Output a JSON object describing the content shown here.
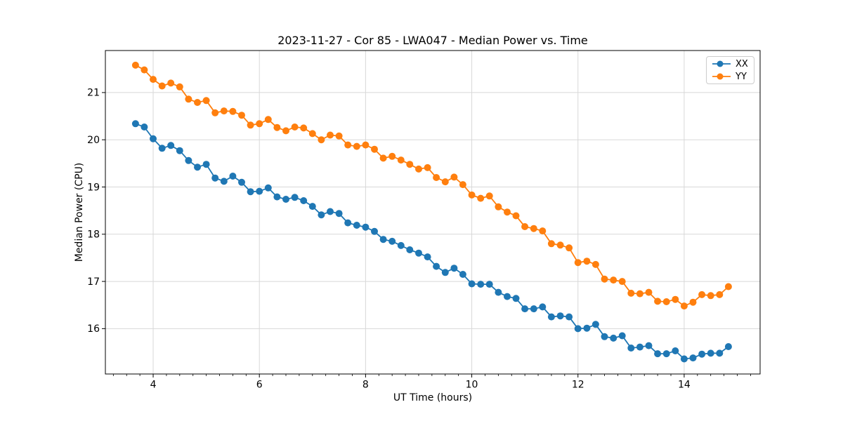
{
  "chart_data": {
    "type": "line",
    "title": "2023-11-27 - Cor 85 - LWA047 - Median Power vs. Time",
    "xlabel": "UT Time (hours)",
    "ylabel": "Median Power (CPU)",
    "xlim": [
      3.1,
      15.43
    ],
    "ylim": [
      15.04,
      21.89
    ],
    "xticks": [
      4,
      6,
      8,
      10,
      12,
      14
    ],
    "yticks": [
      16,
      17,
      18,
      19,
      20,
      21
    ],
    "x_minor_tick_step": 0.25,
    "grid": true,
    "legend_position": "upper right",
    "marker": "circle",
    "x": [
      3.667,
      3.833,
      4.0,
      4.167,
      4.333,
      4.5,
      4.667,
      4.833,
      5.0,
      5.167,
      5.333,
      5.5,
      5.667,
      5.833,
      6.0,
      6.167,
      6.333,
      6.5,
      6.667,
      6.833,
      7.0,
      7.167,
      7.333,
      7.5,
      7.667,
      7.833,
      8.0,
      8.167,
      8.333,
      8.5,
      8.667,
      8.833,
      9.0,
      9.167,
      9.333,
      9.5,
      9.667,
      9.833,
      10.0,
      10.167,
      10.333,
      10.5,
      10.667,
      10.833,
      11.0,
      11.167,
      11.333,
      11.5,
      11.667,
      11.833,
      12.0,
      12.167,
      12.333,
      12.5,
      12.667,
      12.833,
      13.0,
      13.167,
      13.333,
      13.5,
      13.667,
      13.833,
      14.0,
      14.167,
      14.333,
      14.5,
      14.667,
      14.833
    ],
    "series": [
      {
        "name": "XX",
        "color": "#1f77b4",
        "values": [
          20.34,
          20.27,
          20.02,
          19.82,
          19.88,
          19.77,
          19.56,
          19.42,
          19.48,
          19.19,
          19.12,
          19.23,
          19.1,
          18.9,
          18.91,
          18.98,
          18.79,
          18.74,
          18.78,
          18.71,
          18.59,
          18.41,
          18.48,
          18.44,
          18.24,
          18.19,
          18.15,
          18.06,
          17.89,
          17.85,
          17.76,
          17.67,
          17.6,
          17.52,
          17.32,
          17.19,
          17.28,
          17.15,
          16.95,
          16.94,
          16.94,
          16.77,
          16.68,
          16.64,
          16.42,
          16.42,
          16.46,
          16.25,
          16.27,
          16.25,
          16.0,
          16.01,
          16.09,
          15.83,
          15.8,
          15.85,
          15.59,
          15.61,
          15.64,
          15.47,
          15.47,
          15.53,
          15.36,
          15.38,
          15.46,
          15.48,
          15.48,
          15.62
        ]
      },
      {
        "name": "YY",
        "color": "#ff7f0e",
        "values": [
          21.58,
          21.48,
          21.28,
          21.14,
          21.2,
          21.12,
          20.86,
          20.79,
          20.83,
          20.57,
          20.61,
          20.6,
          20.52,
          20.31,
          20.34,
          20.43,
          20.26,
          20.19,
          20.27,
          20.25,
          20.13,
          20.0,
          20.1,
          20.08,
          19.89,
          19.86,
          19.89,
          19.8,
          19.61,
          19.65,
          19.57,
          19.48,
          19.38,
          19.41,
          19.2,
          19.11,
          19.21,
          19.05,
          18.83,
          18.76,
          18.81,
          18.58,
          18.47,
          18.39,
          18.16,
          18.12,
          18.07,
          17.8,
          17.77,
          17.71,
          17.4,
          17.43,
          17.36,
          17.05,
          17.03,
          17.0,
          16.75,
          16.74,
          16.77,
          16.58,
          16.57,
          16.62,
          16.48,
          16.56,
          16.72,
          16.7,
          16.72,
          16.89
        ]
      }
    ]
  },
  "style": {
    "grid_color": "#d8d8d8",
    "spine_color": "#000000",
    "background": "#ffffff",
    "line_width": 1.8,
    "marker_radius": 5
  }
}
